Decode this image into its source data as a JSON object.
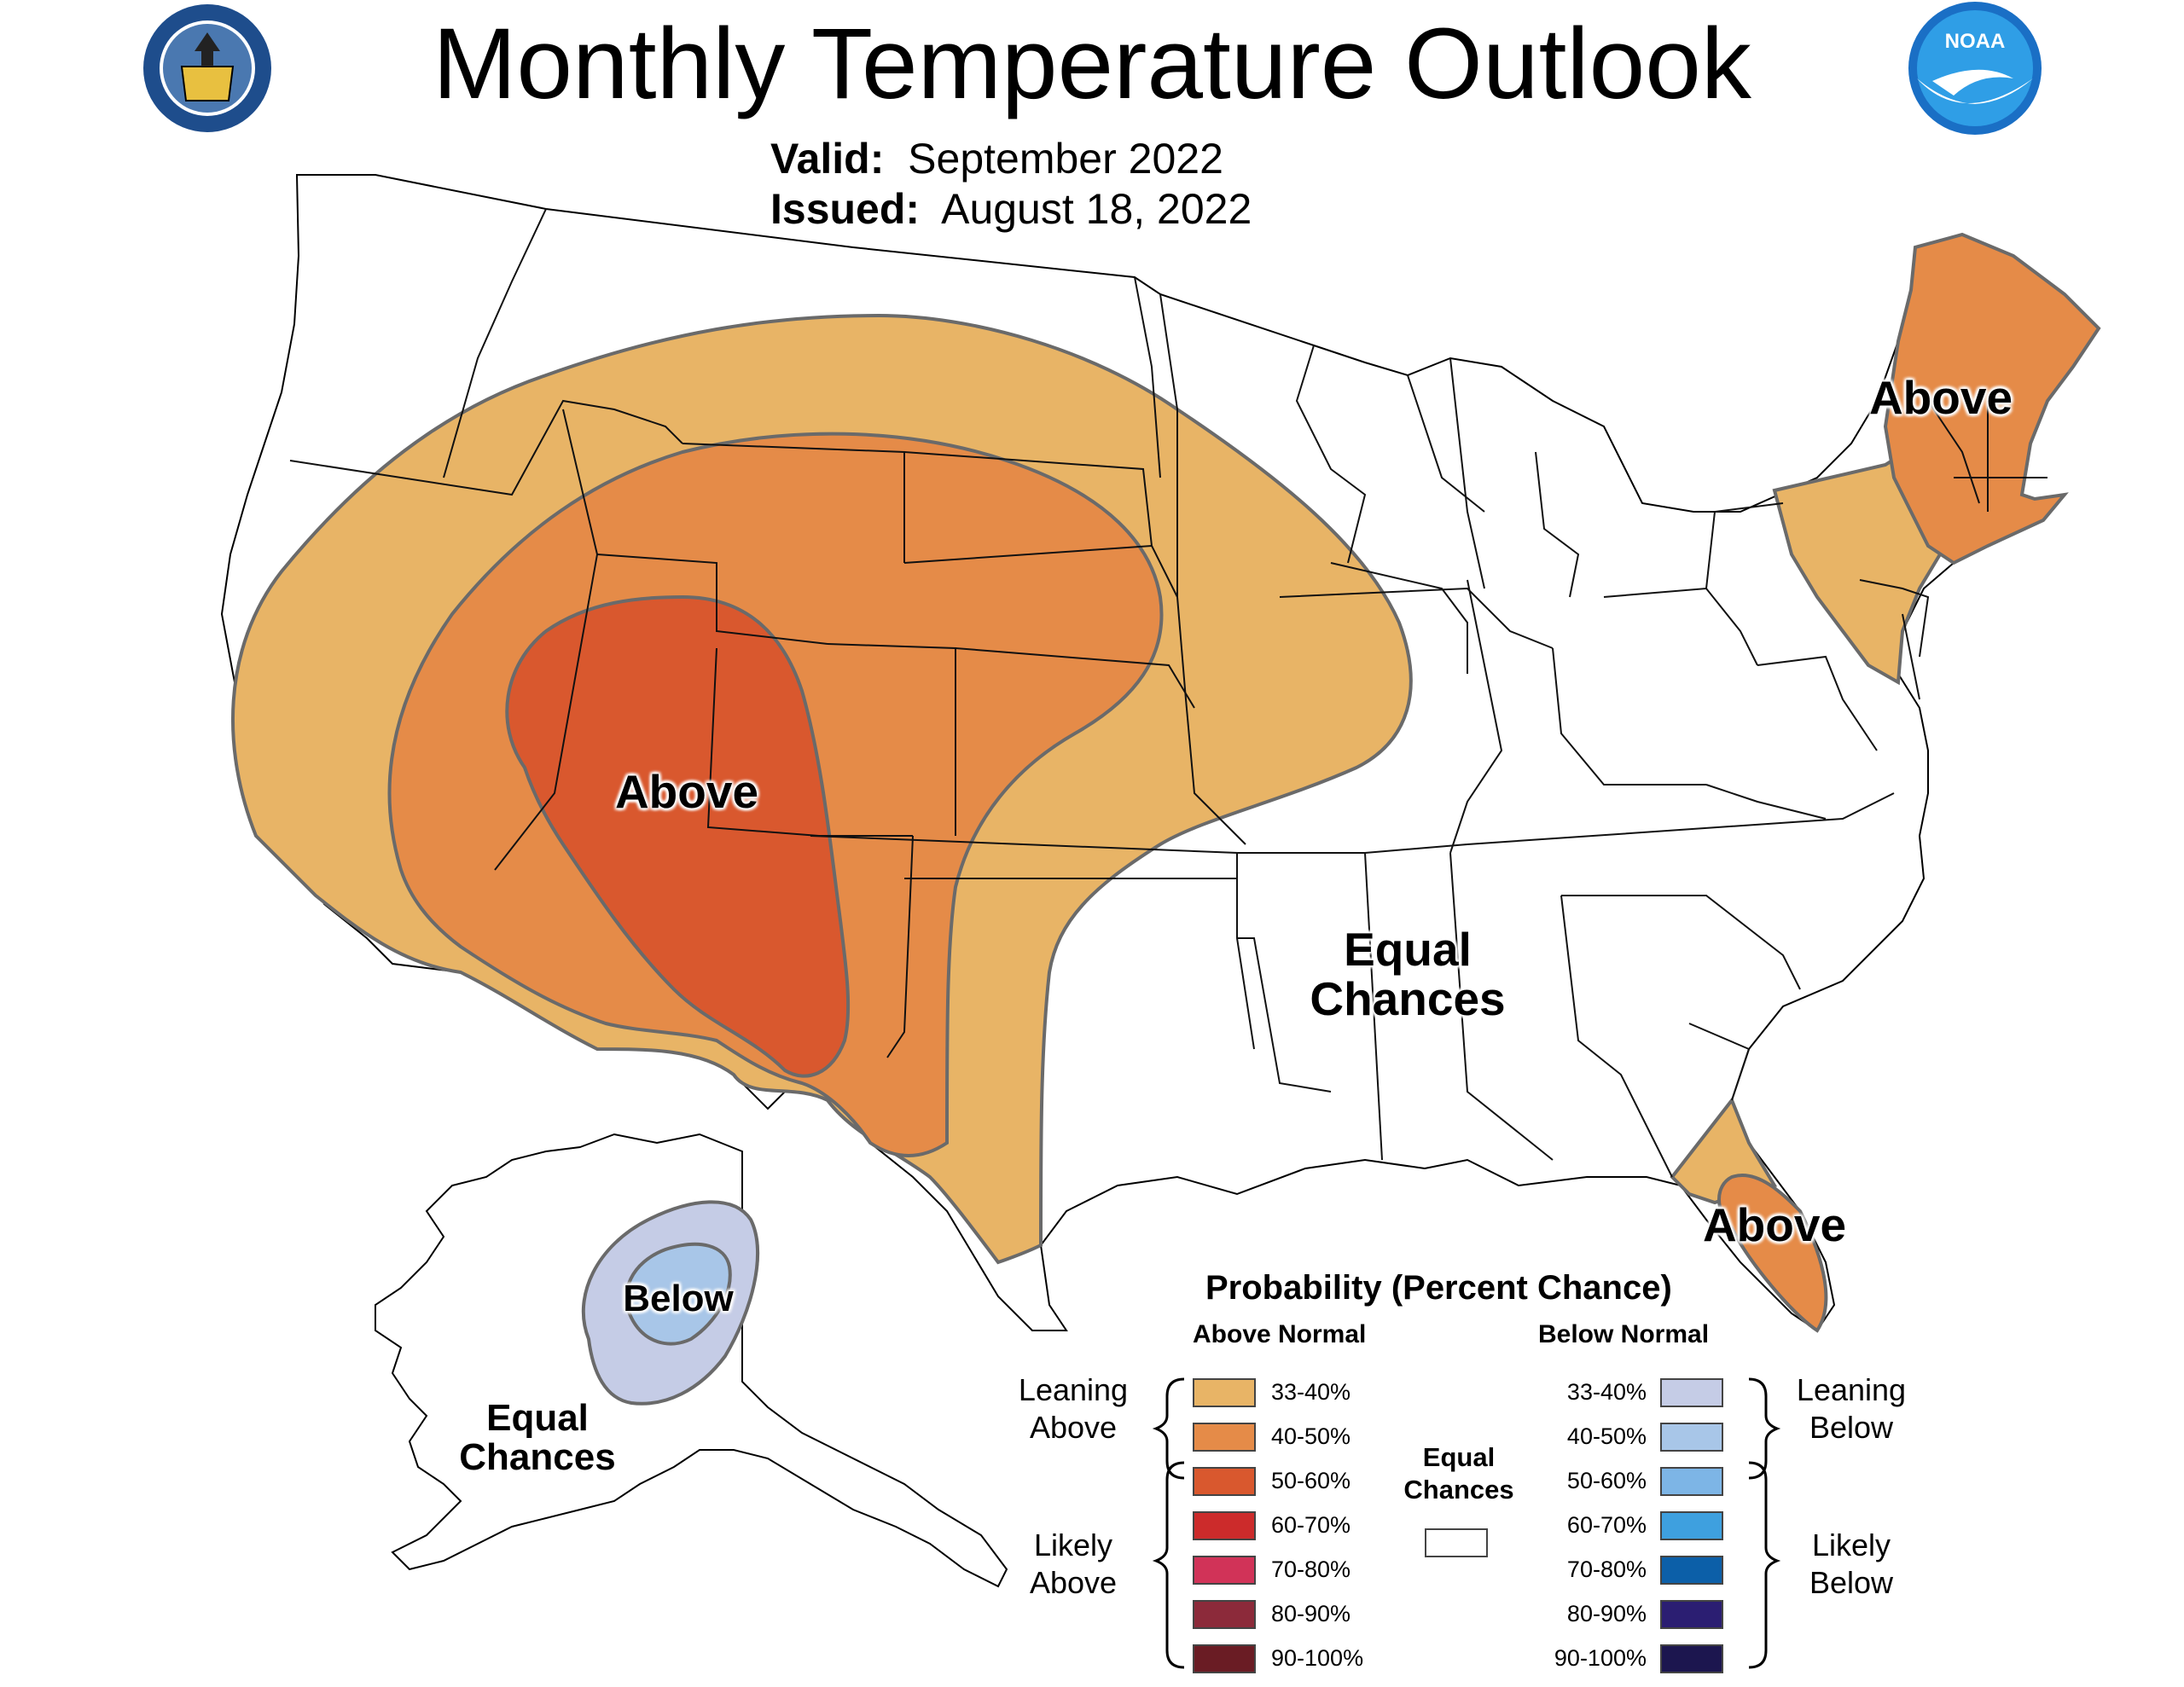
{
  "header": {
    "title": "Monthly Temperature Outlook",
    "valid_key": "Valid:",
    "valid_value": "September 2022",
    "issued_key": "Issued:",
    "issued_value": "August 18, 2022"
  },
  "logos": {
    "left": "department-of-commerce-seal",
    "right": "noaa-logo",
    "right_text": "NOAA"
  },
  "map_labels": {
    "west_above": "Above",
    "northeast_above": "Above",
    "florida_above": "Above",
    "conus_equal_1": "Equal",
    "conus_equal_2": "Chances",
    "alaska_below": "Below",
    "alaska_equal_1": "Equal",
    "alaska_equal_2": "Chances"
  },
  "legend": {
    "title": "Probability (Percent Chance)",
    "above_head": "Above Normal",
    "below_head": "Below Normal",
    "leaning_above_1": "Leaning",
    "leaning_above_2": "Above",
    "likely_above_1": "Likely",
    "likely_above_2": "Above",
    "leaning_below_1": "Leaning",
    "leaning_below_2": "Below",
    "likely_below_1": "Likely",
    "likely_below_2": "Below",
    "equal_1": "Equal",
    "equal_2": "Chances",
    "above": [
      {
        "label": "33-40%",
        "color": "#e8b466"
      },
      {
        "label": "40-50%",
        "color": "#e58b48"
      },
      {
        "label": "50-60%",
        "color": "#d9582e"
      },
      {
        "label": "60-70%",
        "color": "#cc2b2b"
      },
      {
        "label": "70-80%",
        "color": "#d13358"
      },
      {
        "label": "80-90%",
        "color": "#8c2a3a"
      },
      {
        "label": "90-100%",
        "color": "#6a1c24"
      }
    ],
    "below": [
      {
        "label": "33-40%",
        "color": "#c5cce6"
      },
      {
        "label": "40-50%",
        "color": "#a8c6e8"
      },
      {
        "label": "50-60%",
        "color": "#7db5e6"
      },
      {
        "label": "60-70%",
        "color": "#3ea0df"
      },
      {
        "label": "70-80%",
        "color": "#0c5fa8"
      },
      {
        "label": "80-90%",
        "color": "#2b1e72"
      },
      {
        "label": "90-100%",
        "color": "#1c164f"
      }
    ],
    "equal_color": "#ffffff"
  }
}
